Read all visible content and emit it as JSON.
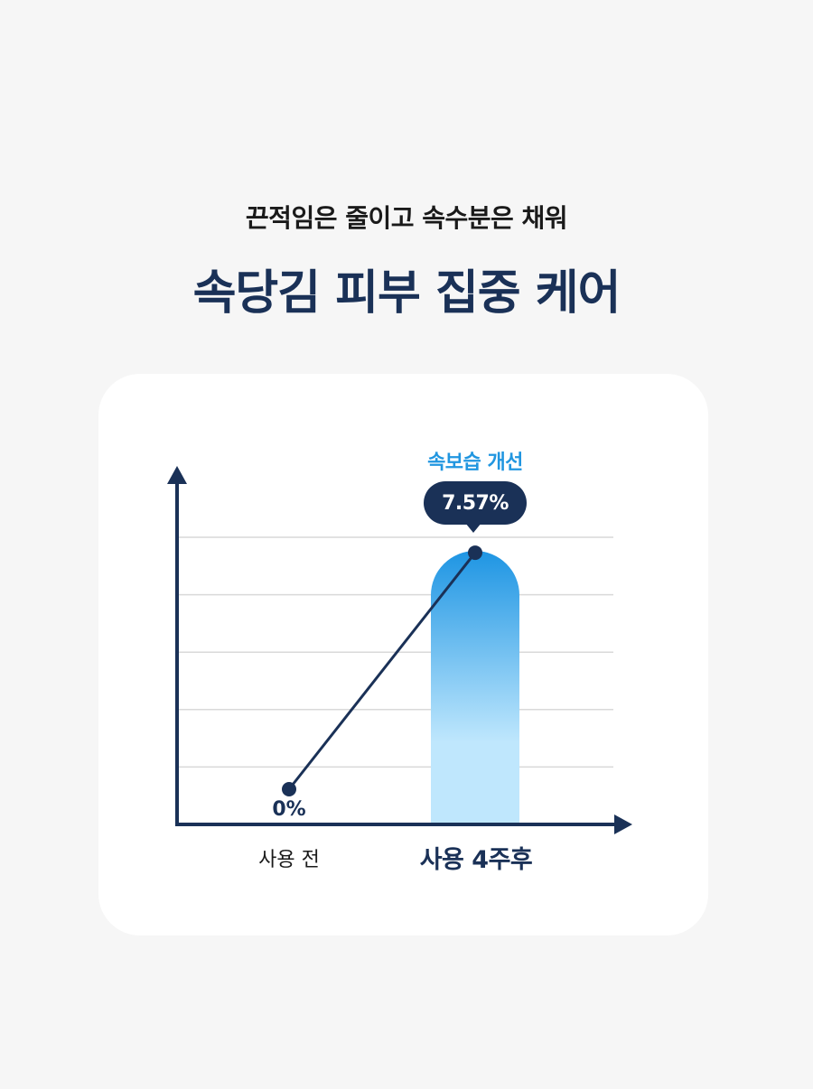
{
  "header": {
    "subtitle": "끈적임은 줄이고 속수분은 채워",
    "title": "속당김 피부 집중 케어"
  },
  "chart_data": {
    "type": "bar",
    "categories": [
      "사용 전",
      "사용 4주후"
    ],
    "series": [
      {
        "values": [
          0,
          7.57
        ]
      }
    ],
    "value_labels": [
      "0%",
      "7.57%"
    ],
    "annotation": "속보습 개선",
    "ylim": [
      0,
      8
    ],
    "grid": true,
    "line_overlay": true
  },
  "colors": {
    "navy": "#1a3157",
    "accent_blue": "#2196e0",
    "bar_top": "#1e95e3",
    "bar_bottom": "#bfe7fd",
    "grid": "#d9d9d9",
    "card": "#ffffff",
    "background": "#f6f6f6"
  }
}
